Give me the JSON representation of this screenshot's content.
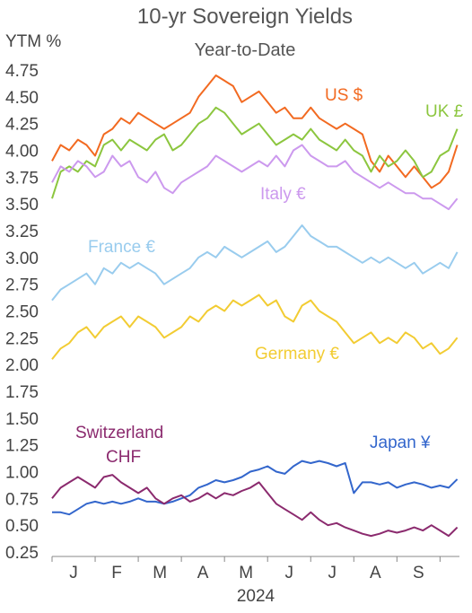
{
  "chart_data": {
    "type": "line",
    "title": "10-yr Sovereign Yields",
    "subtitle": "Year-to-Date",
    "ylabel": "YTM %",
    "xlabel": "2024",
    "ylim": [
      0.25,
      4.75
    ],
    "y_ticks": [
      "4.75",
      "4.50",
      "4.25",
      "4.00",
      "3.75",
      "3.50",
      "3.25",
      "3.00",
      "2.75",
      "2.50",
      "2.25",
      "2.00",
      "1.75",
      "1.50",
      "1.25",
      "1.00",
      "0.75",
      "0.50",
      "0.25"
    ],
    "x_ticks": [
      "J",
      "F",
      "M",
      "A",
      "M",
      "J",
      "J",
      "A",
      "S"
    ],
    "x_tick_positions": [
      1,
      2,
      3,
      4,
      5,
      6,
      7,
      8,
      9
    ],
    "xlim": [
      0.5,
      9.95
    ],
    "grid": false,
    "legend": "none",
    "series": [
      {
        "name": "US $",
        "color": "#f26a21",
        "x": [
          0.5,
          0.7,
          0.9,
          1.1,
          1.3,
          1.5,
          1.7,
          1.9,
          2.1,
          2.3,
          2.5,
          2.7,
          2.9,
          3.1,
          3.3,
          3.5,
          3.7,
          3.9,
          4.1,
          4.3,
          4.5,
          4.7,
          4.9,
          5.1,
          5.3,
          5.5,
          5.7,
          5.9,
          6.1,
          6.3,
          6.5,
          6.7,
          6.9,
          7.1,
          7.3,
          7.5,
          7.7,
          7.9,
          8.1,
          8.3,
          8.5,
          8.7,
          8.9,
          9.1,
          9.3,
          9.5,
          9.7,
          9.9
        ],
        "y": [
          3.9,
          4.05,
          4.0,
          4.1,
          4.05,
          3.95,
          4.15,
          4.2,
          4.3,
          4.25,
          4.35,
          4.3,
          4.25,
          4.2,
          4.25,
          4.3,
          4.35,
          4.5,
          4.6,
          4.7,
          4.65,
          4.6,
          4.45,
          4.5,
          4.55,
          4.45,
          4.35,
          4.4,
          4.3,
          4.3,
          4.4,
          4.3,
          4.25,
          4.2,
          4.25,
          4.2,
          4.15,
          3.9,
          3.8,
          3.95,
          3.85,
          3.75,
          3.85,
          3.75,
          3.65,
          3.7,
          3.8,
          4.05
        ]
      },
      {
        "name": "UK £",
        "color": "#8cc63f",
        "x": [
          0.5,
          0.7,
          0.9,
          1.1,
          1.3,
          1.5,
          1.7,
          1.9,
          2.1,
          2.3,
          2.5,
          2.7,
          2.9,
          3.1,
          3.3,
          3.5,
          3.7,
          3.9,
          4.1,
          4.3,
          4.5,
          4.7,
          4.9,
          5.1,
          5.3,
          5.5,
          5.7,
          5.9,
          6.1,
          6.3,
          6.5,
          6.7,
          6.9,
          7.1,
          7.3,
          7.5,
          7.7,
          7.9,
          8.1,
          8.3,
          8.5,
          8.7,
          8.9,
          9.1,
          9.3,
          9.5,
          9.7,
          9.9
        ],
        "y": [
          3.55,
          3.8,
          3.85,
          3.8,
          3.9,
          3.85,
          4.05,
          4.1,
          4.0,
          4.1,
          4.05,
          4.0,
          4.1,
          4.15,
          4.0,
          4.05,
          4.15,
          4.25,
          4.3,
          4.4,
          4.35,
          4.25,
          4.15,
          4.2,
          4.25,
          4.15,
          4.05,
          4.1,
          4.15,
          4.1,
          4.2,
          4.1,
          4.05,
          4.0,
          4.1,
          4.0,
          3.95,
          3.8,
          3.95,
          3.85,
          3.9,
          4.0,
          3.9,
          3.75,
          3.8,
          3.95,
          4.0,
          4.2
        ]
      },
      {
        "name": "Italy €",
        "color": "#cc99ee",
        "x": [
          0.5,
          0.7,
          0.9,
          1.1,
          1.3,
          1.5,
          1.7,
          1.9,
          2.1,
          2.3,
          2.5,
          2.7,
          2.9,
          3.1,
          3.3,
          3.5,
          3.7,
          3.9,
          4.1,
          4.3,
          4.5,
          4.7,
          4.9,
          5.1,
          5.3,
          5.5,
          5.7,
          5.9,
          6.1,
          6.3,
          6.5,
          6.7,
          6.9,
          7.1,
          7.3,
          7.5,
          7.7,
          7.9,
          8.1,
          8.3,
          8.5,
          8.7,
          8.9,
          9.1,
          9.3,
          9.5,
          9.7,
          9.9
        ],
        "y": [
          3.7,
          3.85,
          3.8,
          3.9,
          3.85,
          3.75,
          3.8,
          3.95,
          3.85,
          3.9,
          3.75,
          3.7,
          3.8,
          3.65,
          3.6,
          3.7,
          3.75,
          3.8,
          3.85,
          3.95,
          3.9,
          3.85,
          3.8,
          3.85,
          3.9,
          3.85,
          3.95,
          3.85,
          4.0,
          4.05,
          3.95,
          3.9,
          3.85,
          3.85,
          3.9,
          3.8,
          3.75,
          3.7,
          3.65,
          3.7,
          3.65,
          3.6,
          3.6,
          3.55,
          3.55,
          3.5,
          3.45,
          3.55
        ]
      },
      {
        "name": "France €",
        "color": "#99ccee",
        "x": [
          0.5,
          0.7,
          0.9,
          1.1,
          1.3,
          1.5,
          1.7,
          1.9,
          2.1,
          2.3,
          2.5,
          2.7,
          2.9,
          3.1,
          3.3,
          3.5,
          3.7,
          3.9,
          4.1,
          4.3,
          4.5,
          4.7,
          4.9,
          5.1,
          5.3,
          5.5,
          5.7,
          5.9,
          6.1,
          6.3,
          6.5,
          6.7,
          6.9,
          7.1,
          7.3,
          7.5,
          7.7,
          7.9,
          8.1,
          8.3,
          8.5,
          8.7,
          8.9,
          9.1,
          9.3,
          9.5,
          9.7,
          9.9
        ],
        "y": [
          2.6,
          2.7,
          2.75,
          2.8,
          2.85,
          2.75,
          2.9,
          2.85,
          2.95,
          2.9,
          2.95,
          2.9,
          2.85,
          2.75,
          2.8,
          2.85,
          2.9,
          3.0,
          3.05,
          3.0,
          3.1,
          3.05,
          3.0,
          3.05,
          3.1,
          3.15,
          3.05,
          3.1,
          3.2,
          3.3,
          3.2,
          3.15,
          3.1,
          3.1,
          3.05,
          3.0,
          2.95,
          3.0,
          2.95,
          3.0,
          2.95,
          2.9,
          2.95,
          2.85,
          2.9,
          2.95,
          2.9,
          3.05
        ]
      },
      {
        "name": "Germany €",
        "color": "#f2cc33",
        "x": [
          0.5,
          0.7,
          0.9,
          1.1,
          1.3,
          1.5,
          1.7,
          1.9,
          2.1,
          2.3,
          2.5,
          2.7,
          2.9,
          3.1,
          3.3,
          3.5,
          3.7,
          3.9,
          4.1,
          4.3,
          4.5,
          4.7,
          4.9,
          5.1,
          5.3,
          5.5,
          5.7,
          5.9,
          6.1,
          6.3,
          6.5,
          6.7,
          6.9,
          7.1,
          7.3,
          7.5,
          7.7,
          7.9,
          8.1,
          8.3,
          8.5,
          8.7,
          8.9,
          9.1,
          9.3,
          9.5,
          9.7,
          9.9
        ],
        "y": [
          2.05,
          2.15,
          2.2,
          2.3,
          2.35,
          2.25,
          2.35,
          2.4,
          2.45,
          2.35,
          2.45,
          2.4,
          2.35,
          2.25,
          2.3,
          2.35,
          2.45,
          2.4,
          2.5,
          2.55,
          2.5,
          2.6,
          2.55,
          2.6,
          2.65,
          2.55,
          2.6,
          2.45,
          2.4,
          2.55,
          2.6,
          2.5,
          2.45,
          2.4,
          2.3,
          2.2,
          2.25,
          2.3,
          2.2,
          2.25,
          2.2,
          2.3,
          2.25,
          2.15,
          2.2,
          2.1,
          2.15,
          2.25
        ]
      },
      {
        "name": "Japan ¥",
        "color": "#3366cc",
        "x": [
          0.5,
          0.7,
          0.9,
          1.1,
          1.3,
          1.5,
          1.7,
          1.9,
          2.1,
          2.3,
          2.5,
          2.7,
          2.9,
          3.1,
          3.3,
          3.5,
          3.7,
          3.9,
          4.1,
          4.3,
          4.5,
          4.7,
          4.9,
          5.1,
          5.3,
          5.5,
          5.7,
          5.9,
          6.1,
          6.3,
          6.5,
          6.7,
          6.9,
          7.1,
          7.3,
          7.5,
          7.7,
          7.9,
          8.1,
          8.3,
          8.5,
          8.7,
          8.9,
          9.1,
          9.3,
          9.5,
          9.7,
          9.9
        ],
        "y": [
          0.62,
          0.62,
          0.6,
          0.65,
          0.7,
          0.72,
          0.7,
          0.72,
          0.7,
          0.72,
          0.75,
          0.72,
          0.72,
          0.7,
          0.72,
          0.75,
          0.78,
          0.85,
          0.88,
          0.92,
          0.9,
          0.92,
          0.95,
          1.0,
          1.02,
          1.05,
          1.0,
          0.98,
          1.05,
          1.1,
          1.08,
          1.1,
          1.08,
          1.05,
          1.08,
          0.8,
          0.9,
          0.9,
          0.88,
          0.9,
          0.85,
          0.88,
          0.9,
          0.88,
          0.85,
          0.87,
          0.85,
          0.93
        ]
      },
      {
        "name": "Switzerland CHF",
        "color": "#8b2a6e",
        "x": [
          0.5,
          0.7,
          0.9,
          1.1,
          1.3,
          1.5,
          1.7,
          1.9,
          2.1,
          2.3,
          2.5,
          2.7,
          2.9,
          3.1,
          3.3,
          3.5,
          3.7,
          3.9,
          4.1,
          4.3,
          4.5,
          4.7,
          4.9,
          5.1,
          5.3,
          5.5,
          5.7,
          5.9,
          6.1,
          6.3,
          6.5,
          6.7,
          6.9,
          7.1,
          7.3,
          7.5,
          7.7,
          7.9,
          8.1,
          8.3,
          8.5,
          8.7,
          8.9,
          9.1,
          9.3,
          9.5,
          9.7,
          9.9
        ],
        "y": [
          0.75,
          0.85,
          0.9,
          0.95,
          0.9,
          0.85,
          0.95,
          0.97,
          0.9,
          0.85,
          0.8,
          0.85,
          0.75,
          0.7,
          0.75,
          0.78,
          0.72,
          0.75,
          0.8,
          0.75,
          0.8,
          0.78,
          0.82,
          0.85,
          0.9,
          0.8,
          0.7,
          0.65,
          0.6,
          0.55,
          0.62,
          0.55,
          0.5,
          0.52,
          0.48,
          0.45,
          0.42,
          0.4,
          0.42,
          0.45,
          0.43,
          0.45,
          0.48,
          0.45,
          0.5,
          0.45,
          0.4,
          0.48
        ]
      }
    ],
    "labels": [
      {
        "series": "US $",
        "lines": [
          "US $"
        ]
      },
      {
        "series": "UK £",
        "lines": [
          "UK £"
        ]
      },
      {
        "series": "Italy €",
        "lines": [
          "Italy €"
        ]
      },
      {
        "series": "France €",
        "lines": [
          "France €"
        ]
      },
      {
        "series": "Germany €",
        "lines": [
          "Germany €"
        ]
      },
      {
        "series": "Japan ¥",
        "lines": [
          "Japan ¥"
        ]
      },
      {
        "series": "Switzerland CHF",
        "lines": [
          "Switzerland",
          "CHF"
        ]
      }
    ]
  }
}
